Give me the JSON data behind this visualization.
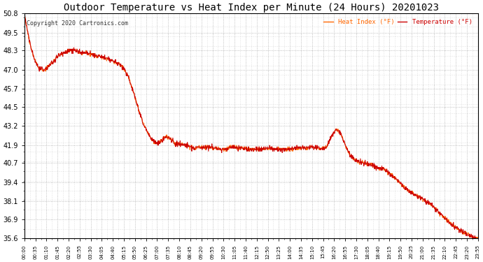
{
  "title": "Outdoor Temperature vs Heat Index per Minute (24 Hours) 20201023",
  "copyright": "Copyright 2020 Cartronics.com",
  "legend_heat": "Heat Index (°F)",
  "legend_temp": "Temperature (°F)",
  "yticks": [
    35.6,
    36.9,
    38.1,
    39.4,
    40.7,
    41.9,
    43.2,
    44.5,
    45.7,
    47.0,
    48.3,
    49.5,
    50.8
  ],
  "ymin": 35.6,
  "ymax": 50.8,
  "heat_color": "#ff6600",
  "temp_color": "#cc0000",
  "bg_color": "#ffffff",
  "grid_color": "#999999",
  "title_fontsize": 10,
  "copyright_color": "#333333",
  "xtick_labels": [
    "00:00",
    "00:35",
    "01:10",
    "01:45",
    "02:20",
    "02:55",
    "03:30",
    "04:05",
    "04:40",
    "05:15",
    "05:50",
    "06:25",
    "07:00",
    "07:35",
    "08:10",
    "08:45",
    "09:20",
    "09:55",
    "10:30",
    "11:05",
    "11:40",
    "12:15",
    "12:50",
    "13:25",
    "14:00",
    "14:35",
    "15:10",
    "15:45",
    "16:20",
    "16:55",
    "17:30",
    "18:05",
    "18:40",
    "19:15",
    "19:50",
    "20:25",
    "21:00",
    "21:35",
    "22:10",
    "22:45",
    "23:20",
    "23:55"
  ],
  "curve_keypoints": [
    [
      0.0,
      50.8
    ],
    [
      0.25,
      49.0
    ],
    [
      0.5,
      47.8
    ],
    [
      0.75,
      47.1
    ],
    [
      1.0,
      46.95
    ],
    [
      1.25,
      47.2
    ],
    [
      1.5,
      47.5
    ],
    [
      1.75,
      47.9
    ],
    [
      2.0,
      48.1
    ],
    [
      2.25,
      48.25
    ],
    [
      2.5,
      48.35
    ],
    [
      2.75,
      48.3
    ],
    [
      3.0,
      48.1
    ],
    [
      3.25,
      48.15
    ],
    [
      3.5,
      48.05
    ],
    [
      3.75,
      47.95
    ],
    [
      4.0,
      47.9
    ],
    [
      4.25,
      47.8
    ],
    [
      4.5,
      47.7
    ],
    [
      4.75,
      47.55
    ],
    [
      5.0,
      47.4
    ],
    [
      5.25,
      47.1
    ],
    [
      5.5,
      46.5
    ],
    [
      5.75,
      45.6
    ],
    [
      6.0,
      44.5
    ],
    [
      6.25,
      43.5
    ],
    [
      6.5,
      42.8
    ],
    [
      6.75,
      42.3
    ],
    [
      7.0,
      42.0
    ],
    [
      7.25,
      42.2
    ],
    [
      7.5,
      42.5
    ],
    [
      7.75,
      42.3
    ],
    [
      8.0,
      42.0
    ],
    [
      8.5,
      41.9
    ],
    [
      9.0,
      41.7
    ],
    [
      9.5,
      41.8
    ],
    [
      10.0,
      41.75
    ],
    [
      10.5,
      41.6
    ],
    [
      11.0,
      41.8
    ],
    [
      11.5,
      41.7
    ],
    [
      12.0,
      41.6
    ],
    [
      12.5,
      41.65
    ],
    [
      13.0,
      41.7
    ],
    [
      13.5,
      41.6
    ],
    [
      14.0,
      41.65
    ],
    [
      14.5,
      41.7
    ],
    [
      15.0,
      41.75
    ],
    [
      15.25,
      41.8
    ],
    [
      15.5,
      41.75
    ],
    [
      15.75,
      41.7
    ],
    [
      16.0,
      41.8
    ],
    [
      16.25,
      42.5
    ],
    [
      16.5,
      43.0
    ],
    [
      16.75,
      42.7
    ],
    [
      17.0,
      41.8
    ],
    [
      17.25,
      41.2
    ],
    [
      17.5,
      40.9
    ],
    [
      17.75,
      40.75
    ],
    [
      18.0,
      40.7
    ],
    [
      18.25,
      40.6
    ],
    [
      18.5,
      40.5
    ],
    [
      18.75,
      40.4
    ],
    [
      19.0,
      40.3
    ],
    [
      19.25,
      40.1
    ],
    [
      19.5,
      39.8
    ],
    [
      19.75,
      39.5
    ],
    [
      20.0,
      39.2
    ],
    [
      20.25,
      38.9
    ],
    [
      20.5,
      38.7
    ],
    [
      20.75,
      38.5
    ],
    [
      21.0,
      38.3
    ],
    [
      21.25,
      38.1
    ],
    [
      21.5,
      37.9
    ],
    [
      21.75,
      37.6
    ],
    [
      22.0,
      37.3
    ],
    [
      22.25,
      37.0
    ],
    [
      22.5,
      36.7
    ],
    [
      22.75,
      36.4
    ],
    [
      23.0,
      36.2
    ],
    [
      23.25,
      36.0
    ],
    [
      23.5,
      35.85
    ],
    [
      23.75,
      35.7
    ],
    [
      24.0,
      35.6
    ]
  ]
}
